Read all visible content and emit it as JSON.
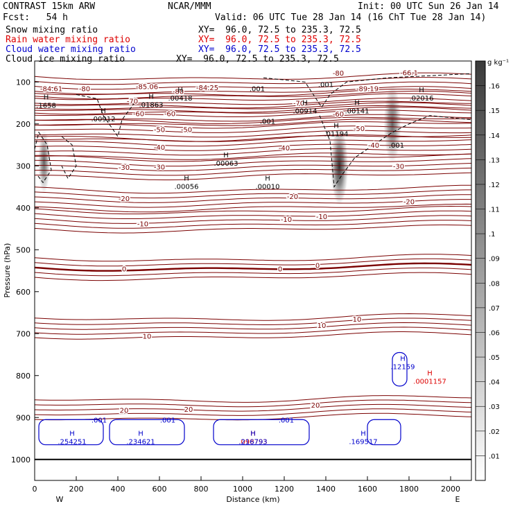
{
  "header": {
    "model": "CONTRAST 15km ARW",
    "org": "NCAR/MMM",
    "init": "Init: 00 UTC Sun 26 Jan 14",
    "fcst": "Fcst:   54 h",
    "valid": "Valid: 06 UTC Tue 28 Jan 14 (16 ChT Tue 28 Jan 14)",
    "rows": [
      {
        "label": "Snow mixing ratio",
        "xy": "XY=  96.0, 72.5 to 235.3, 72.5",
        "color": "#000000"
      },
      {
        "label": "Rain water mixing ratio",
        "xy": "XY=  96.0, 72.5 to 235.3, 72.5",
        "color": "#dd0000"
      },
      {
        "label": "Cloud water mixing ratio",
        "xy": "XY=  96.0, 72.5 to 235.3, 72.5",
        "color": "#0000cc"
      },
      {
        "label": "Cloud ice mixing ratio",
        "xy": "XY=  96.0, 72.5 to 235.3, 72.5",
        "color": "#000000"
      }
    ]
  },
  "chart_data": {
    "type": "heatmap",
    "xlabel": "Distance (km)",
    "ylabel": "Pressure (hPa)",
    "x_ticks": [
      0,
      200,
      400,
      600,
      800,
      1000,
      1200,
      1400,
      1600,
      1800,
      2000
    ],
    "y_ticks": [
      100,
      200,
      300,
      400,
      500,
      600,
      700,
      800,
      900,
      1000
    ],
    "xlim": [
      0,
      2100
    ],
    "ylim": [
      50,
      1050
    ],
    "x_end_labels": {
      "left": "W",
      "right": "E"
    },
    "colorbar": {
      "unit": "g kg⁻¹",
      "ticks": [
        ".01",
        ".02",
        ".03",
        ".04",
        ".05",
        ".06",
        ".07",
        ".08",
        ".09",
        ".1",
        ".11",
        ".12",
        ".13",
        ".14",
        ".15",
        ".16"
      ]
    },
    "colors": {
      "temp": "#7a0000",
      "cloud": "#0000cc",
      "rain": "#dd0000",
      "ice": "#000000"
    },
    "temperature_labels": [
      {
        "text": "-84.61",
        "x": 80,
        "p": 115
      },
      {
        "text": "-80",
        "x": 240,
        "p": 115
      },
      {
        "text": "-85.06",
        "x": 540,
        "p": 110
      },
      {
        "text": "-80",
        "x": 690,
        "p": 122
      },
      {
        "text": "-84.25",
        "x": 830,
        "p": 113
      },
      {
        "text": "-80",
        "x": 1460,
        "p": 78
      },
      {
        "text": "-66.1",
        "x": 1800,
        "p": 77
      },
      {
        "text": "-89.19",
        "x": 1600,
        "p": 115
      },
      {
        "text": "-70",
        "x": 470,
        "p": 145
      },
      {
        "text": "-70",
        "x": 1270,
        "p": 150
      },
      {
        "text": "-60",
        "x": 500,
        "p": 175
      },
      {
        "text": "-60",
        "x": 650,
        "p": 175
      },
      {
        "text": "-60",
        "x": 1460,
        "p": 176
      },
      {
        "text": "-50",
        "x": 600,
        "p": 213
      },
      {
        "text": "-50",
        "x": 730,
        "p": 213
      },
      {
        "text": "-50",
        "x": 1560,
        "p": 210
      },
      {
        "text": "-40",
        "x": 600,
        "p": 255
      },
      {
        "text": "-40",
        "x": 1200,
        "p": 257
      },
      {
        "text": "-40",
        "x": 1630,
        "p": 250
      },
      {
        "text": "-30",
        "x": 430,
        "p": 303
      },
      {
        "text": "-30",
        "x": 600,
        "p": 302
      },
      {
        "text": "-30",
        "x": 1750,
        "p": 300
      },
      {
        "text": "-20",
        "x": 430,
        "p": 377
      },
      {
        "text": "-20",
        "x": 1240,
        "p": 372
      },
      {
        "text": "-20",
        "x": 1800,
        "p": 385
      },
      {
        "text": "-10",
        "x": 520,
        "p": 438
      },
      {
        "text": "-10",
        "x": 1210,
        "p": 427
      },
      {
        "text": "-10",
        "x": 1380,
        "p": 420
      },
      {
        "text": "0",
        "x": 430,
        "p": 545
      },
      {
        "text": "0",
        "x": 1180,
        "p": 545
      },
      {
        "text": "0",
        "x": 1360,
        "p": 537
      },
      {
        "text": "10",
        "x": 540,
        "p": 705
      },
      {
        "text": "10",
        "x": 1380,
        "p": 680
      },
      {
        "text": "10",
        "x": 1550,
        "p": 665
      },
      {
        "text": "20",
        "x": 430,
        "p": 882
      },
      {
        "text": "20",
        "x": 740,
        "p": 880
      },
      {
        "text": "20",
        "x": 1350,
        "p": 870
      }
    ],
    "ice_labels": [
      {
        "text": ".001",
        "x": 1070,
        "p": 115
      },
      {
        "text": ".001",
        "x": 1400,
        "p": 105
      },
      {
        "text": ".001",
        "x": 1120,
        "p": 193
      },
      {
        "text": ".001",
        "x": 1740,
        "p": 250
      }
    ],
    "max_labels": [
      {
        "text": ".1658",
        "x": 55,
        "p": 155,
        "color": "#000000"
      },
      {
        "text": ".00912",
        "x": 330,
        "p": 187,
        "color": "#000000"
      },
      {
        "text": ".01863",
        "x": 560,
        "p": 153,
        "color": "#000000"
      },
      {
        "text": ".00418",
        "x": 700,
        "p": 138,
        "color": "#000000"
      },
      {
        "text": ".00914",
        "x": 1300,
        "p": 168,
        "color": "#000000"
      },
      {
        "text": ".00141",
        "x": 1550,
        "p": 168,
        "color": "#000000"
      },
      {
        "text": ".02016",
        "x": 1860,
        "p": 138,
        "color": "#000000"
      },
      {
        "text": ".01194",
        "x": 1450,
        "p": 223,
        "color": "#000000"
      },
      {
        "text": ".00063",
        "x": 920,
        "p": 293,
        "color": "#000000"
      },
      {
        "text": ".00056",
        "x": 730,
        "p": 348,
        "color": "#000000"
      },
      {
        "text": ".00010",
        "x": 1120,
        "p": 348,
        "color": "#000000"
      },
      {
        "text": ".12159",
        "x": 1770,
        "p": 778,
        "color": "#0000cc"
      },
      {
        "text": ".0001157",
        "x": 1900,
        "p": 813,
        "color": "#dd0000"
      },
      {
        "text": ".254251",
        "x": 180,
        "p": 957,
        "color": "#0000cc"
      },
      {
        "text": ".234621",
        "x": 510,
        "p": 957,
        "color": "#0000cc"
      },
      {
        "text": ".098793",
        "x": 1050,
        "p": 957,
        "color": "#dd0000"
      },
      {
        "text": ".216793",
        "x": 1050,
        "p": 957,
        "color": "#0000cc"
      },
      {
        "text": ".169517",
        "x": 1580,
        "p": 957,
        "color": "#0000cc"
      }
    ],
    "cloud_labels": [
      {
        "text": ".001",
        "x": 310,
        "p": 905
      },
      {
        "text": ".001",
        "x": 640,
        "p": 905
      },
      {
        "text": ".001",
        "x": 1210,
        "p": 905
      }
    ],
    "snow_cells": [
      {
        "x": 45,
        "p": 290,
        "ax": 30,
        "ap": 80,
        "v": 0.12
      },
      {
        "x": 1465,
        "p": 300,
        "ax": 45,
        "ap": 100,
        "v": 0.16
      },
      {
        "x": 1720,
        "p": 200,
        "ax": 45,
        "ap": 100,
        "v": 0.12
      }
    ],
    "temperature_isotherm_levels": [
      -80,
      -70,
      -60,
      -50,
      -40,
      -30,
      -20,
      -10,
      0,
      10,
      20
    ]
  }
}
